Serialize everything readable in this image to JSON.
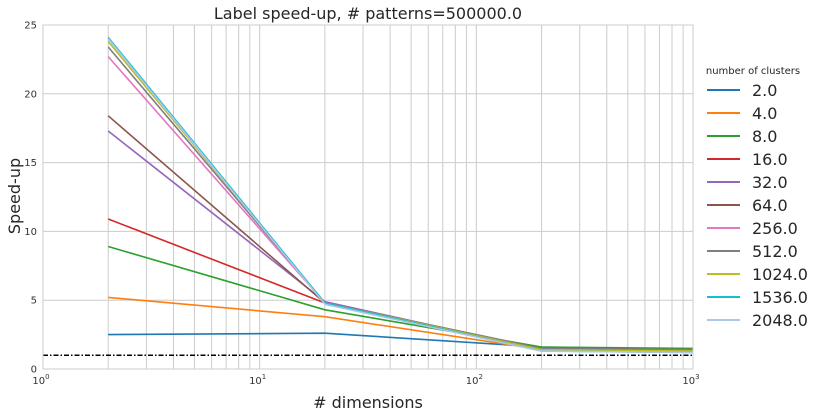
{
  "chart_data": {
    "type": "line",
    "title": "Label speed-up, # patterns=500000.0",
    "xlabel": "# dimensions",
    "ylabel": "Speed-up",
    "xscale": "log",
    "xlim": [
      1,
      1000
    ],
    "ylim": [
      0,
      25
    ],
    "grid": true,
    "x_ticks": [
      {
        "value": 1,
        "base": "10",
        "exp": "0"
      },
      {
        "value": 10,
        "base": "10",
        "exp": "1"
      },
      {
        "value": 100,
        "base": "10",
        "exp": "2"
      },
      {
        "value": 1000,
        "base": "10",
        "exp": "3"
      }
    ],
    "y_ticks": [
      "0",
      "5",
      "10",
      "15",
      "20",
      "25"
    ],
    "legend": {
      "title": "number of clusters",
      "placement": "outside-right"
    },
    "x": [
      2,
      20,
      200,
      1000
    ],
    "series": [
      {
        "name": "2.0",
        "color": "#1f77b4",
        "values": [
          2.5,
          2.6,
          1.6,
          1.4
        ]
      },
      {
        "name": "4.0",
        "color": "#ff7f0e",
        "values": [
          5.2,
          3.8,
          1.4,
          1.3
        ]
      },
      {
        "name": "8.0",
        "color": "#2ca02c",
        "values": [
          8.9,
          4.3,
          1.6,
          1.5
        ]
      },
      {
        "name": "16.0",
        "color": "#d62728",
        "values": [
          10.9,
          4.8,
          1.4,
          1.3
        ]
      },
      {
        "name": "32.0",
        "color": "#9467bd",
        "values": [
          17.3,
          4.9,
          1.4,
          1.4
        ]
      },
      {
        "name": "64.0",
        "color": "#8c564b",
        "values": [
          18.4,
          4.8,
          1.5,
          1.4
        ]
      },
      {
        "name": "256.0",
        "color": "#e377c2",
        "values": [
          22.7,
          4.8,
          1.4,
          1.3
        ]
      },
      {
        "name": "512.0",
        "color": "#7f7f7f",
        "values": [
          23.4,
          4.8,
          1.5,
          1.4
        ]
      },
      {
        "name": "1024.0",
        "color": "#bcbd22",
        "values": [
          23.8,
          4.8,
          1.4,
          1.3
        ]
      },
      {
        "name": "1536.0",
        "color": "#17becf",
        "values": [
          24.1,
          4.8,
          1.3,
          1.2
        ]
      },
      {
        "name": "2048.0",
        "color": "#aec7e8",
        "values": [
          24.0,
          4.7,
          1.3,
          1.2
        ]
      }
    ],
    "reference_line": {
      "y": 1.0,
      "style": "dash-dot",
      "color": "#000000"
    }
  }
}
